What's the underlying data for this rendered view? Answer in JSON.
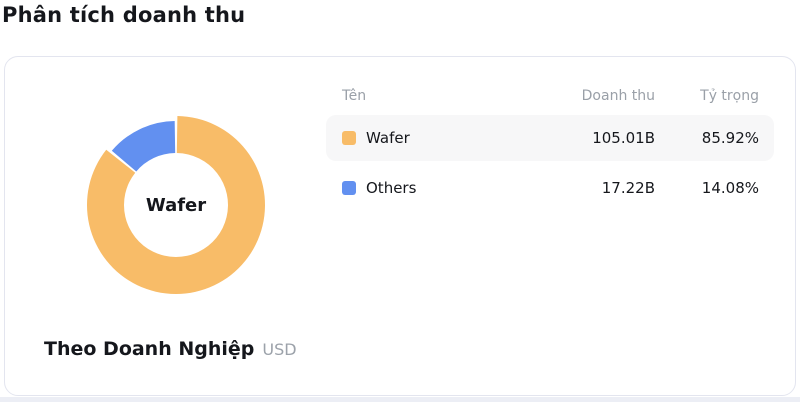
{
  "page_title": "Phân tích doanh thu",
  "card": {
    "center_label": "Wafer",
    "table": {
      "headers": [
        "Tên",
        "Doanh thu",
        "Tỷ trọng"
      ],
      "rows": [
        {
          "name": "Wafer",
          "value": "105.01B",
          "pct": "85.92%",
          "highlighted": true
        },
        {
          "name": "Others",
          "value": "17.22B",
          "pct": "14.08%",
          "highlighted": false
        }
      ]
    },
    "footer": {
      "title": "Theo Doanh Nghiệp",
      "unit": "USD"
    }
  },
  "chart_data": {
    "type": "pie",
    "donut": true,
    "title": "Phân tích doanh thu",
    "group_by_label": "Theo Doanh Nghiệp",
    "unit": "USD",
    "categories": [
      "Wafer",
      "Others"
    ],
    "values_billions": [
      105.01,
      17.22
    ],
    "value_labels": [
      "105.01B",
      "17.22B"
    ],
    "percentages": [
      85.92,
      14.08
    ],
    "colors": [
      "#F8BC68",
      "#6290F0"
    ],
    "center_label": "Wafer",
    "emphasized_category": "Wafer",
    "legend_position": "right"
  },
  "theme": {
    "row_highlight": "#F7F7F8",
    "card_border": "#E3E5EF",
    "header_text": "#9AA0A8",
    "body_text": "#15171C",
    "muted_text": "#9CA2AA"
  }
}
